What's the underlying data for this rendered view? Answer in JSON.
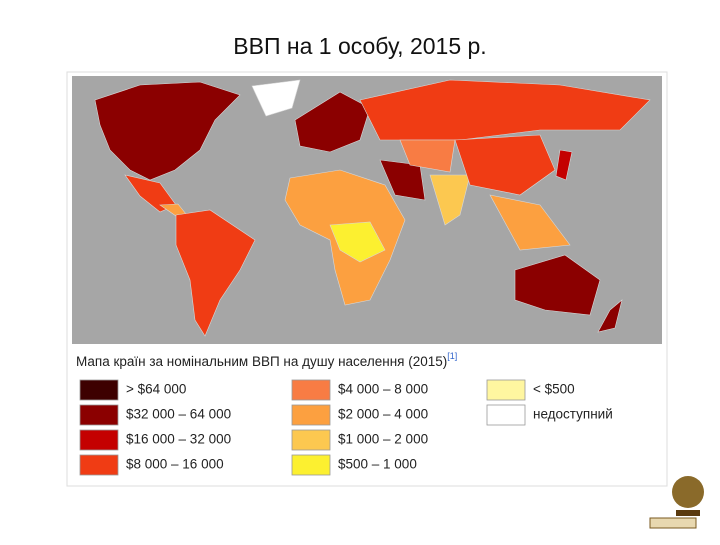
{
  "title": "ВВП на 1 особу, 2015 р.",
  "caption": {
    "text": "Мапа країн за номінальним ВВП на душу населення (2015)",
    "ref": "[1]"
  },
  "legend": [
    {
      "label": "> $64 000",
      "color": "#3d0000"
    },
    {
      "label": "$32 000 – 64 000",
      "color": "#8b0000"
    },
    {
      "label": "$16 000 – 32 000",
      "color": "#c40000"
    },
    {
      "label": "$8 000 – 16 000",
      "color": "#f03c14"
    },
    {
      "label": "$4 000 – 8 000",
      "color": "#f87c44"
    },
    {
      "label": "$2 000 – 4 000",
      "color": "#fca040"
    },
    {
      "label": "$1 000 – 2 000",
      "color": "#fcc850"
    },
    {
      "label": "$500 – 1 000",
      "color": "#fcf030"
    },
    {
      "label": "< $500",
      "color": "#fff6a0"
    },
    {
      "label": "недоступний",
      "color": "#ffffff"
    }
  ]
}
